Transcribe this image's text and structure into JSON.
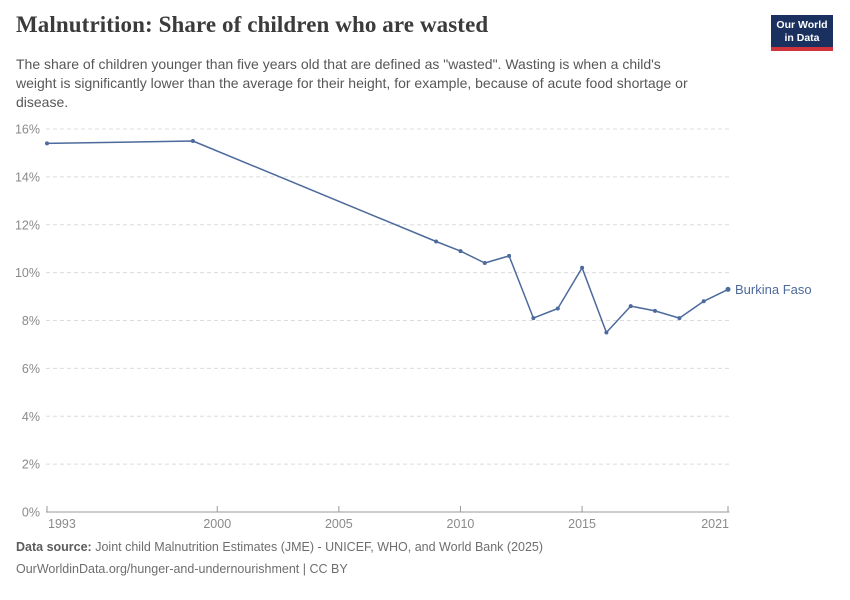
{
  "header": {
    "title": "Malnutrition: Share of children who are wasted",
    "subtitle_lines": [
      "The share of children younger than five years old that are defined as \"wasted\". Wasting is when a child's",
      "weight is significantly lower than the average for their height, for example, because of acute food shortage or",
      "disease."
    ],
    "logo": {
      "line1": "Our World",
      "line2": "in Data",
      "bg_color": "#1a3160",
      "bar_color": "#d0333b"
    }
  },
  "chart_data": {
    "type": "line",
    "title": "Malnutrition: Share of children who are wasted",
    "xlabel": "",
    "ylabel": "",
    "xlim": [
      1993,
      2021
    ],
    "ylim": [
      0,
      16
    ],
    "x_ticks": [
      1993,
      2000,
      2005,
      2010,
      2015,
      2021
    ],
    "y_ticks": [
      0,
      2,
      4,
      6,
      8,
      10,
      12,
      14,
      16
    ],
    "y_tick_suffix": "%",
    "grid": "horizontal-dashed",
    "legend_position": "end-of-line-label",
    "series": [
      {
        "name": "Burkina Faso",
        "color": "#4C6A9C",
        "points": [
          [
            1993,
            15.4
          ],
          [
            1999,
            15.5
          ],
          [
            2009,
            11.3
          ],
          [
            2010,
            10.9
          ],
          [
            2011,
            10.4
          ],
          [
            2012,
            10.7
          ],
          [
            2013,
            8.1
          ],
          [
            2014,
            8.5
          ],
          [
            2015,
            10.2
          ],
          [
            2016,
            7.5
          ],
          [
            2017,
            8.6
          ],
          [
            2018,
            8.4
          ],
          [
            2019,
            8.1
          ],
          [
            2020,
            8.8
          ],
          [
            2021,
            9.3
          ]
        ]
      }
    ]
  },
  "colors": {
    "line": "#4C6A9C",
    "grid": "#dcdcdc",
    "axis": "#9a9a9a",
    "tick_label": "#8a8a8a"
  },
  "footer": {
    "source_label": "Data source:",
    "source_text": "Joint child Malnutrition Estimates (JME) - UNICEF, WHO, and World Bank (2025)",
    "note_text": "OurWorldinData.org/hunger-and-undernourishment | CC BY"
  }
}
